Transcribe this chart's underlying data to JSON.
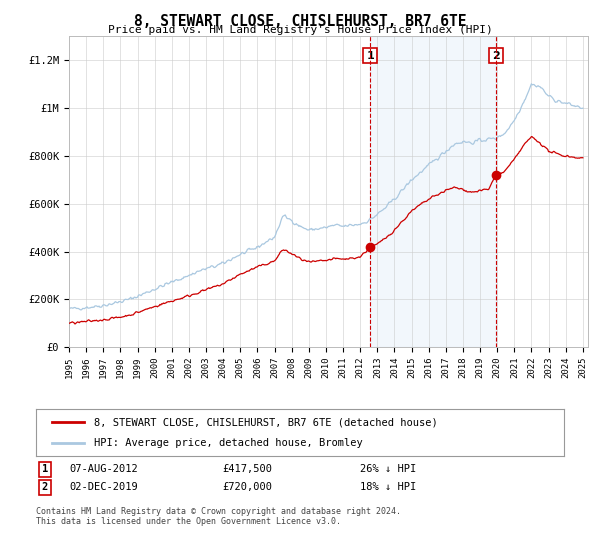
{
  "title": "8, STEWART CLOSE, CHISLEHURST, BR7 6TE",
  "subtitle": "Price paid vs. HM Land Registry's House Price Index (HPI)",
  "ylim": [
    0,
    1300000
  ],
  "yticks": [
    0,
    200000,
    400000,
    600000,
    800000,
    1000000,
    1200000
  ],
  "ytick_labels": [
    "£0",
    "£200K",
    "£400K",
    "£600K",
    "£800K",
    "£1M",
    "£1.2M"
  ],
  "x_start_year": 1995,
  "x_end_year": 2025,
  "hpi_color": "#aac8e0",
  "price_color": "#cc0000",
  "sale1_date": 2012.58,
  "sale1_price": 417500,
  "sale2_date": 2019.92,
  "sale2_price": 720000,
  "dashed_color": "#cc0000",
  "legend_label_red": "8, STEWART CLOSE, CHISLEHURST, BR7 6TE (detached house)",
  "legend_label_blue": "HPI: Average price, detached house, Bromley",
  "footer": "Contains HM Land Registry data © Crown copyright and database right 2024.\nThis data is licensed under the Open Government Licence v3.0.",
  "hpi_points": [
    [
      1995.0,
      160000
    ],
    [
      1995.5,
      163000
    ],
    [
      1996.0,
      166000
    ],
    [
      1996.5,
      170000
    ],
    [
      1997.0,
      175000
    ],
    [
      1997.5,
      182000
    ],
    [
      1998.0,
      190000
    ],
    [
      1998.5,
      200000
    ],
    [
      1999.0,
      213000
    ],
    [
      1999.5,
      228000
    ],
    [
      2000.0,
      243000
    ],
    [
      2000.5,
      258000
    ],
    [
      2001.0,
      272000
    ],
    [
      2001.5,
      286000
    ],
    [
      2002.0,
      300000
    ],
    [
      2002.5,
      316000
    ],
    [
      2003.0,
      328000
    ],
    [
      2003.5,
      338000
    ],
    [
      2004.0,
      350000
    ],
    [
      2004.5,
      370000
    ],
    [
      2005.0,
      388000
    ],
    [
      2005.5,
      402000
    ],
    [
      2006.0,
      418000
    ],
    [
      2006.5,
      440000
    ],
    [
      2007.0,
      460000
    ],
    [
      2007.5,
      550000
    ],
    [
      2008.0,
      530000
    ],
    [
      2008.5,
      505000
    ],
    [
      2009.0,
      490000
    ],
    [
      2009.5,
      495000
    ],
    [
      2010.0,
      500000
    ],
    [
      2010.5,
      510000
    ],
    [
      2011.0,
      505000
    ],
    [
      2011.5,
      510000
    ],
    [
      2012.0,
      515000
    ],
    [
      2012.5,
      530000
    ],
    [
      2013.0,
      555000
    ],
    [
      2013.5,
      585000
    ],
    [
      2014.0,
      620000
    ],
    [
      2014.5,
      660000
    ],
    [
      2015.0,
      700000
    ],
    [
      2015.5,
      730000
    ],
    [
      2016.0,
      760000
    ],
    [
      2016.5,
      790000
    ],
    [
      2017.0,
      820000
    ],
    [
      2017.5,
      850000
    ],
    [
      2018.0,
      860000
    ],
    [
      2018.5,
      855000
    ],
    [
      2019.0,
      865000
    ],
    [
      2019.5,
      870000
    ],
    [
      2020.0,
      875000
    ],
    [
      2020.5,
      900000
    ],
    [
      2021.0,
      950000
    ],
    [
      2021.5,
      1020000
    ],
    [
      2022.0,
      1100000
    ],
    [
      2022.5,
      1090000
    ],
    [
      2023.0,
      1050000
    ],
    [
      2023.5,
      1030000
    ],
    [
      2024.0,
      1020000
    ],
    [
      2024.5,
      1010000
    ],
    [
      2025.0,
      1000000
    ]
  ],
  "red_points": [
    [
      1995.0,
      100000
    ],
    [
      1995.5,
      103000
    ],
    [
      1996.0,
      107000
    ],
    [
      1996.5,
      111000
    ],
    [
      1997.0,
      115000
    ],
    [
      1997.5,
      120000
    ],
    [
      1998.0,
      126000
    ],
    [
      1998.5,
      134000
    ],
    [
      1999.0,
      145000
    ],
    [
      1999.5,
      158000
    ],
    [
      2000.0,
      170000
    ],
    [
      2000.5,
      182000
    ],
    [
      2001.0,
      193000
    ],
    [
      2001.5,
      204000
    ],
    [
      2002.0,
      215000
    ],
    [
      2002.5,
      228000
    ],
    [
      2003.0,
      240000
    ],
    [
      2003.5,
      252000
    ],
    [
      2004.0,
      265000
    ],
    [
      2004.5,
      285000
    ],
    [
      2005.0,
      305000
    ],
    [
      2005.5,
      320000
    ],
    [
      2006.0,
      335000
    ],
    [
      2006.5,
      348000
    ],
    [
      2007.0,
      360000
    ],
    [
      2007.5,
      410000
    ],
    [
      2008.0,
      390000
    ],
    [
      2008.5,
      370000
    ],
    [
      2009.0,
      355000
    ],
    [
      2009.5,
      358000
    ],
    [
      2010.0,
      362000
    ],
    [
      2010.5,
      370000
    ],
    [
      2011.0,
      368000
    ],
    [
      2011.5,
      372000
    ],
    [
      2012.0,
      378000
    ],
    [
      2012.58,
      417500
    ],
    [
      2013.0,
      430000
    ],
    [
      2013.5,
      458000
    ],
    [
      2014.0,
      490000
    ],
    [
      2014.5,
      530000
    ],
    [
      2015.0,
      568000
    ],
    [
      2015.5,
      595000
    ],
    [
      2016.0,
      618000
    ],
    [
      2016.5,
      638000
    ],
    [
      2017.0,
      655000
    ],
    [
      2017.5,
      668000
    ],
    [
      2018.0,
      660000
    ],
    [
      2018.5,
      648000
    ],
    [
      2019.0,
      655000
    ],
    [
      2019.5,
      660000
    ],
    [
      2019.92,
      720000
    ],
    [
      2020.0,
      715000
    ],
    [
      2020.5,
      740000
    ],
    [
      2021.0,
      785000
    ],
    [
      2021.5,
      840000
    ],
    [
      2022.0,
      880000
    ],
    [
      2022.5,
      855000
    ],
    [
      2023.0,
      820000
    ],
    [
      2023.5,
      808000
    ],
    [
      2024.0,
      800000
    ],
    [
      2024.5,
      795000
    ],
    [
      2025.0,
      790000
    ]
  ]
}
